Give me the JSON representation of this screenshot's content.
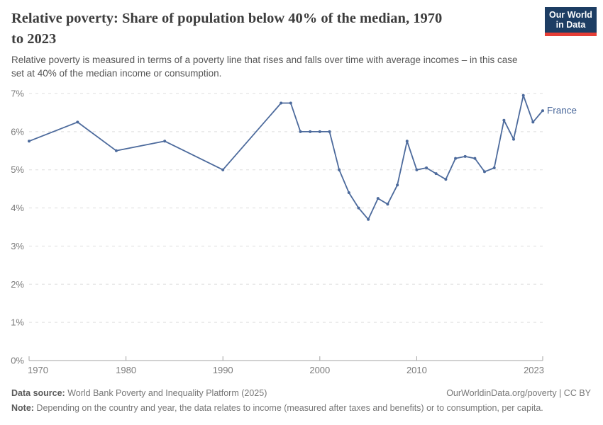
{
  "header": {
    "title": "Relative poverty: Share of population below 40% of the median, 1970\nto 2023",
    "subtitle": "Relative poverty is measured in terms of a poverty line that rises and falls over time with average incomes – in this case\nset at 40% of the median income or consumption.",
    "logo": {
      "line1": "Our World",
      "line2": "in Data",
      "bg_color": "#1d3d63",
      "accent_color": "#e63e36"
    }
  },
  "chart_data": {
    "type": "line",
    "title": "Relative poverty: Share of population below 40% of the median, 1970 to 2023",
    "unit": "%",
    "xlim": [
      1970,
      2023
    ],
    "ylim": [
      0,
      7
    ],
    "x_ticks": [
      1970,
      1980,
      1990,
      2000,
      2010,
      2023
    ],
    "y_ticks": [
      0,
      1,
      2,
      3,
      4,
      5,
      6,
      7
    ],
    "grid": "horizontal-dashed",
    "legend_position": "end-of-line-label",
    "series": [
      {
        "name": "France",
        "color": "#4c6a9c",
        "years": [
          1970,
          1975,
          1979,
          1984,
          1990,
          1996,
          1997,
          1998,
          1999,
          2000,
          2001,
          2002,
          2003,
          2004,
          2005,
          2006,
          2007,
          2008,
          2009,
          2010,
          2011,
          2012,
          2013,
          2014,
          2015,
          2016,
          2017,
          2018,
          2019,
          2020,
          2021,
          2022,
          2023
        ],
        "values": [
          5.75,
          6.25,
          5.5,
          5.75,
          5.0,
          6.75,
          6.75,
          6.0,
          6.0,
          6.0,
          6.0,
          5.0,
          4.4,
          4.0,
          3.7,
          4.25,
          4.1,
          4.6,
          5.75,
          5.0,
          5.05,
          4.9,
          4.75,
          5.3,
          5.35,
          5.3,
          4.95,
          5.05,
          6.3,
          5.8,
          6.95,
          6.25,
          6.55
        ]
      }
    ],
    "colors": {
      "gridline": "#dedede",
      "axis": "#a3a3a3",
      "tick_text": "#7b7b7b"
    }
  },
  "footer": {
    "source_label": "Data source:",
    "source_text": " World Bank Poverty and Inequality Platform (2025)",
    "link_text": "OurWorldinData.org/poverty | CC BY",
    "note_label": "Note:",
    "note_text": " Depending on the country and year, the data relates to income (measured after taxes and benefits) or to consumption, per capita."
  }
}
